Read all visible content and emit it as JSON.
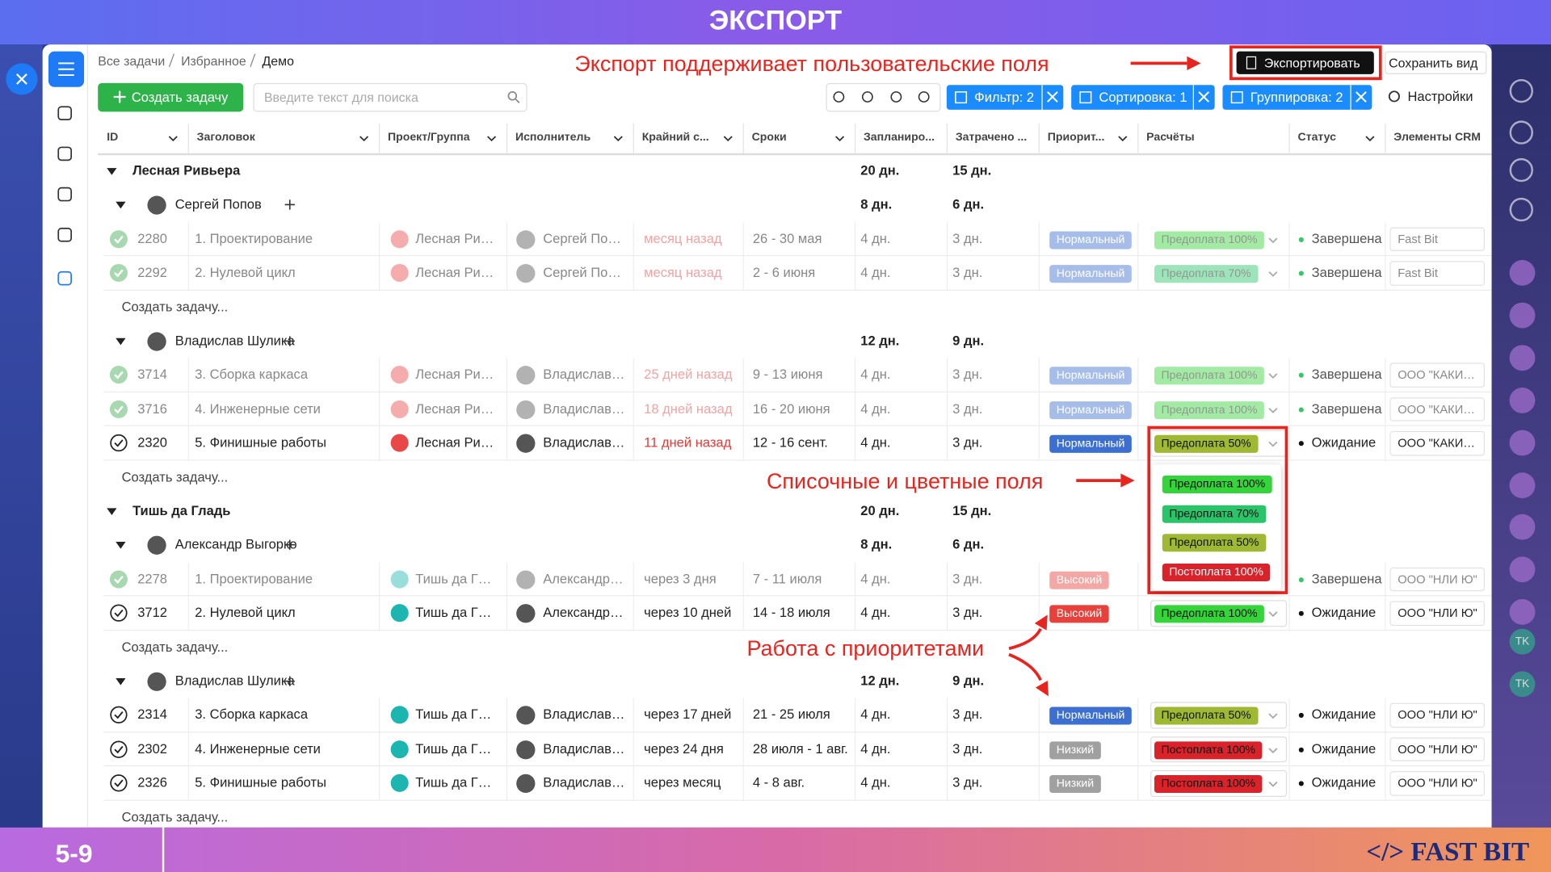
{
  "header": {
    "title": "ЭКСПОРТ"
  },
  "breadcrumbs": [
    "Все задачи",
    "Избранное",
    "Демо"
  ],
  "toolbar": {
    "create": "Создать задачу",
    "search_placeholder": "Введите текст для поиска",
    "filter": "Фильтр: 2",
    "sort": "Сортировка: 1",
    "group": "Группировка: 2",
    "settings": "Настройки",
    "export": "Экспортировать",
    "save_view": "Сохранить вид"
  },
  "annotations": [
    "Экспорт поддерживает пользовательские поля",
    "Списочные и цветные поля",
    "Работа с приоритетами"
  ],
  "columns": [
    "ID",
    "Заголовок",
    "Проект/Группа",
    "Исполнитель",
    "Крайний с...",
    "Сроки",
    "Запланиро...",
    "Затрачено ...",
    "Приорит...",
    "Расчёты",
    "Статус",
    "Элементы CRM"
  ],
  "create_task": "Создать задачу...",
  "colors": {
    "Нормальный": "#3d6fd0",
    "Высокий": "#e8403a",
    "Низкий": "#a0a0a0",
    "Предоплата 100%": "#35d43a",
    "Предоплата 70%": "#2bc46a",
    "Предоплата 50%": "#9fb934",
    "Постоплата 100%": "#d8232b",
    "Завершена": "#3cc46a",
    "Ожидание": "#111111"
  },
  "groups": [
    {
      "name": "Лесная Ривьера",
      "planned": "20 дн.",
      "spent": "15 дн.",
      "subgroups": [
        {
          "name": "Сергей Попов",
          "planned": "8 дн.",
          "spent": "6 дн.",
          "tasks": [
            {
              "id": "2280",
              "title": "1. Проектирование",
              "project": "Лесная Ри…",
              "assignee": "Сергей По…",
              "deadline": "месяц назад",
              "dates": "26 - 30 мая",
              "planned": "4 дн.",
              "spent": "3 дн.",
              "priority": "Нормальный",
              "payment": "Предоплата 100%",
              "status": "Завершена",
              "crm": "Fast Bit",
              "done": true,
              "overdue": true
            },
            {
              "id": "2292",
              "title": "2. Нулевой цикл",
              "project": "Лесная Ри…",
              "assignee": "Сергей По…",
              "deadline": "месяц назад",
              "dates": "2 - 6 июня",
              "planned": "4 дн.",
              "spent": "3 дн.",
              "priority": "Нормальный",
              "payment": "Предоплата 70%",
              "status": "Завершена",
              "crm": "Fast Bit",
              "done": true,
              "overdue": true
            }
          ]
        },
        {
          "name": "Владислав Шулика",
          "planned": "12 дн.",
          "spent": "9 дн.",
          "tasks": [
            {
              "id": "3714",
              "title": "3. Сборка каркаса",
              "project": "Лесная Ри…",
              "assignee": "Владислав…",
              "deadline": "25 дней назад",
              "dates": "9 - 13 июня",
              "planned": "4 дн.",
              "spent": "3 дн.",
              "priority": "Нормальный",
              "payment": "Предоплата 100%",
              "status": "Завершена",
              "crm": "ООО \"КАКИ…",
              "done": true,
              "overdue": true
            },
            {
              "id": "3716",
              "title": "4. Инженерные сети",
              "project": "Лесная Ри…",
              "assignee": "Владислав…",
              "deadline": "18 дней назад",
              "dates": "16 - 20 июня",
              "planned": "4 дн.",
              "spent": "3 дн.",
              "priority": "Нормальный",
              "payment": "Предоплата 100%",
              "status": "Завершена",
              "crm": "ООО \"КАКИ…",
              "done": true,
              "overdue": true
            },
            {
              "id": "2320",
              "title": "5. Финишные работы",
              "project": "Лесная Ри…",
              "assignee": "Владислав…",
              "deadline": "11 дней назад",
              "dates": "12 - 16 сент.",
              "planned": "4 дн.",
              "spent": "3 дн.",
              "priority": "Нормальный",
              "payment": "Предоплата 50%",
              "status": "Ожидание",
              "crm": "ООО \"КАКИ…",
              "done": false,
              "overdue": true
            }
          ]
        }
      ]
    },
    {
      "name": "Тишь да Гладь",
      "planned": "20 дн.",
      "spent": "15 дн.",
      "subgroups": [
        {
          "name": "Александр Выгорко",
          "planned": "8 дн.",
          "spent": "6 дн.",
          "tasks": [
            {
              "id": "2278",
              "title": "1. Проектирование",
              "project": "Тишь да Г…",
              "assignee": "Александр…",
              "deadline": "через 3 дня",
              "dates": "7 - 11 июля",
              "planned": "4 дн.",
              "spent": "3 дн.",
              "priority": "Высокий",
              "payment": null,
              "status": "Завершена",
              "crm": "ООО \"НЛИ Ю\"",
              "done": true,
              "overdue": false
            },
            {
              "id": "3712",
              "title": "2. Нулевой цикл",
              "project": "Тишь да Г…",
              "assignee": "Александр…",
              "deadline": "через 10 дней",
              "dates": "14 - 18 июля",
              "planned": "4 дн.",
              "spent": "3 дн.",
              "priority": "Высокий",
              "payment": "Предоплата 100%",
              "status": "Ожидание",
              "crm": "ООО \"НЛИ Ю\"",
              "done": false,
              "overdue": false
            }
          ]
        },
        {
          "name": "Владислав Шулика",
          "planned": "12 дн.",
          "spent": "9 дн.",
          "tasks": [
            {
              "id": "2314",
              "title": "3. Сборка каркаса",
              "project": "Тишь да Г…",
              "assignee": "Владислав…",
              "deadline": "через 17 дней",
              "dates": "21 - 25 июля",
              "planned": "4 дн.",
              "spent": "3 дн.",
              "priority": "Нормальный",
              "payment": "Предоплата 50%",
              "status": "Ожидание",
              "crm": "ООО \"НЛИ Ю\"",
              "done": false,
              "overdue": false
            },
            {
              "id": "2302",
              "title": "4. Инженерные сети",
              "project": "Тишь да Г…",
              "assignee": "Владислав…",
              "deadline": "через 24 дня",
              "dates": "28 июля - 1 авг.",
              "planned": "4 дн.",
              "spent": "3 дн.",
              "priority": "Низкий",
              "payment": "Постоплата 100%",
              "status": "Ожидание",
              "crm": "ООО \"НЛИ Ю\"",
              "done": false,
              "overdue": false
            },
            {
              "id": "2326",
              "title": "5. Финишные работы",
              "project": "Тишь да Г…",
              "assignee": "Владислав…",
              "deadline": "через месяц",
              "dates": "4 - 8 авг.",
              "planned": "4 дн.",
              "spent": "3 дн.",
              "priority": "Низкий",
              "payment": "Постоплата 100%",
              "status": "Ожидание",
              "crm": "ООО \"НЛИ Ю\"",
              "done": false,
              "overdue": false
            }
          ]
        }
      ]
    }
  ],
  "dropdown": [
    "Предоплата 100%",
    "Предоплата 70%",
    "Предоплата 50%",
    "Постоплата 100%"
  ],
  "right_rail": [
    "TK",
    "TK"
  ],
  "footer": {
    "page": "5-9",
    "brand": "</> FAST BIT"
  }
}
